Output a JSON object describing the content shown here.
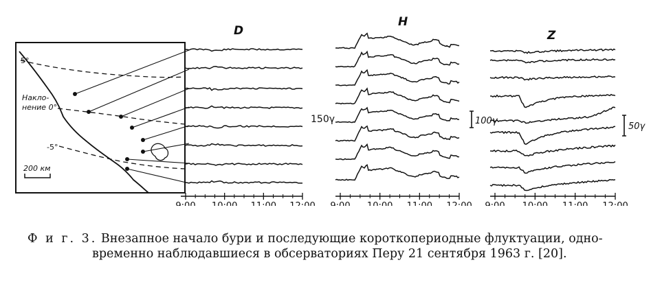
{
  "panels": {
    "d_title": "D",
    "h_title": "H",
    "z_title": "Z"
  },
  "scales": {
    "h_scale": "150γ",
    "h_scale2": "100γ",
    "z_scale": "50γ"
  },
  "time_axis": {
    "ticks": [
      "9:00",
      "10:00",
      "11:00",
      "12:00"
    ]
  },
  "map": {
    "lat_top": "5°",
    "lat_mid_label_1": "Накло-",
    "lat_mid_label_2": "нение 0°",
    "lat_bottom": "-5°",
    "scale_bar": "200 км"
  },
  "caption": {
    "prefix": "Ф и г. 3.",
    "line1_rest": " Внезапное начало бури и последующие короткопериодные флуктуации, одно-",
    "line2": "временно наблюдавшиеся в обсерваториях Перу 21 сентября 1963 г. [20]."
  },
  "colors": {
    "ink": "#111111",
    "paper": "#ffffff"
  }
}
